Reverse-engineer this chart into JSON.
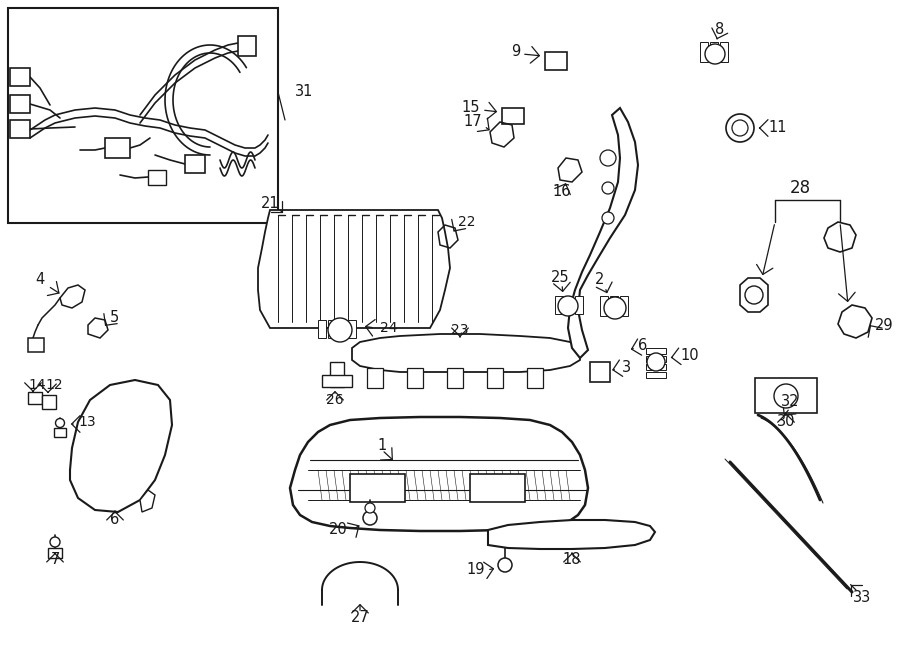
{
  "bg_color": "#ffffff",
  "line_color": "#1a1a1a",
  "fig_width": 9.0,
  "fig_height": 6.61,
  "dpi": 100,
  "label_fontsize": 10.5,
  "arrow_lw": 0.9
}
